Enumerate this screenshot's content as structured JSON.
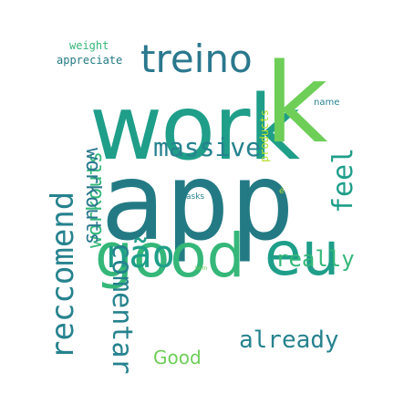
{
  "colors": {
    "dark_teal": "#237a84",
    "teal": "#1f9e89",
    "green": "#35b779",
    "light_green": "#6ece58",
    "lime": "#b5de2b",
    "blue_teal": "#26828e",
    "navy_teal": "#2a788e"
  },
  "words": {
    "app": "app",
    "work": "work",
    "treino": "treino",
    "good": "good",
    "eu": "eu",
    "k": "k",
    "massive": "massive",
    "reccomend": "reccomend",
    "workouts_up": "workouts",
    "workouts_down": "workouts",
    "nao": "não",
    "really": "really",
    "feel": "feel",
    "already": "already",
    "good_small": "Good",
    "comentar": "comentar",
    "weight": "weight",
    "appreciate": "appreciate",
    "name": "name",
    "products": "products",
    "asks": "asks",
    "bom": "bom",
    "e_small": "é"
  }
}
